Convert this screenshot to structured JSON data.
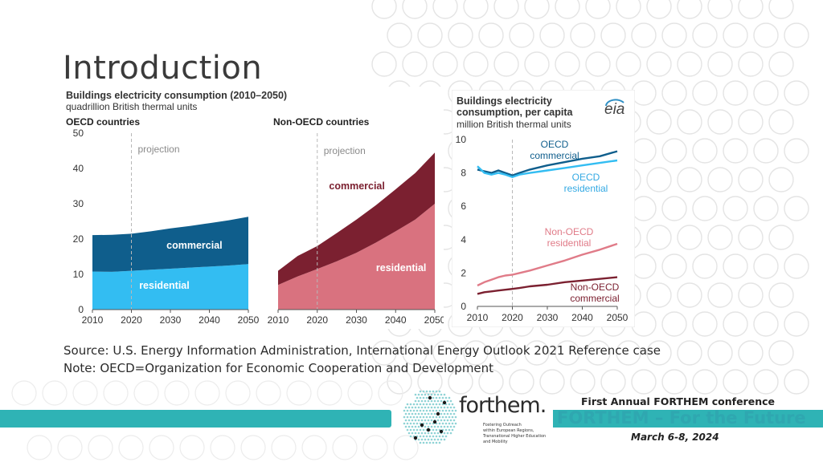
{
  "slide": {
    "title": "Introduction",
    "source_line": "Source: U.S. Energy Information Administration, International Energy Outlook 2021 Reference case",
    "note_line": "Note: OECD=Organization for Economic Cooperation and Development"
  },
  "footer": {
    "logo_text": "forthem.",
    "logo_tagline": [
      "Fostering Outreach",
      "within European Regions,",
      "Transnational Higher Education",
      "and Mobility"
    ],
    "conference_title": "First Annual FORTHEM conference",
    "conference_name": "FORTHEM – For the Future",
    "conference_date": "March 6-8, 2024",
    "colors": {
      "accent": "#2fb3b5",
      "accent_text": "#2fa7b0"
    }
  },
  "chart_data": [
    {
      "type": "area",
      "title": "Buildings electricity consumption (2010–2050)",
      "subtitle": "quadrillion British thermal units",
      "panel": "OECD countries",
      "projection_label": "projection",
      "projection_x": 2020,
      "x": [
        2010,
        2015,
        2020,
        2025,
        2030,
        2035,
        2040,
        2045,
        2050
      ],
      "series": [
        {
          "name": "residential",
          "values": [
            10.8,
            10.7,
            11.0,
            11.3,
            11.6,
            11.9,
            12.2,
            12.5,
            12.9
          ],
          "color": "#33bdf2"
        },
        {
          "name": "commercial",
          "values": [
            10.3,
            10.5,
            10.5,
            10.9,
            11.4,
            11.8,
            12.3,
            12.8,
            13.4
          ],
          "color": "#0f5e8c"
        }
      ],
      "xlabel": "",
      "ylabel": "",
      "xticks": [
        2010,
        2020,
        2030,
        2040,
        2050
      ],
      "yticks": [
        0,
        10,
        20,
        30,
        40,
        50
      ],
      "ylim": [
        0,
        50
      ]
    },
    {
      "type": "area",
      "title": "",
      "panel": "Non-OECD countries",
      "projection_label": "projection",
      "projection_x": 2020,
      "x": [
        2010,
        2015,
        2020,
        2025,
        2030,
        2035,
        2040,
        2045,
        2050
      ],
      "series": [
        {
          "name": "residential",
          "values": [
            7.0,
            9.4,
            11.5,
            13.7,
            16.1,
            19.0,
            22.2,
            25.5,
            30.0
          ],
          "color": "#d9727f"
        },
        {
          "name": "commercial",
          "values": [
            4.0,
            5.8,
            6.5,
            8.0,
            9.4,
            10.6,
            11.9,
            13.2,
            14.5
          ],
          "color": "#7b2030"
        }
      ],
      "xticks": [
        2010,
        2020,
        2030,
        2040,
        2050
      ],
      "ylim": [
        0,
        50
      ]
    },
    {
      "type": "line",
      "title": "Buildings electricity consumption, per capita",
      "subtitle": "million British thermal units",
      "logo_text": "eia",
      "projection_x": 2020,
      "x": [
        2010,
        2012,
        2014,
        2016,
        2018,
        2020,
        2022,
        2025,
        2030,
        2035,
        2040,
        2045,
        2050
      ],
      "series": [
        {
          "name": "OECD commercial",
          "values": [
            8.2,
            8.1,
            8.0,
            8.15,
            8.0,
            7.85,
            8.0,
            8.2,
            8.45,
            8.65,
            8.85,
            9.0,
            9.3
          ],
          "color": "#0f5e8c"
        },
        {
          "name": "OECD residential",
          "values": [
            8.4,
            8.0,
            7.9,
            8.0,
            7.9,
            7.75,
            7.9,
            8.0,
            8.15,
            8.3,
            8.45,
            8.6,
            8.75
          ],
          "color": "#33bdf2"
        },
        {
          "name": "Non-OECD residential",
          "values": [
            1.25,
            1.45,
            1.6,
            1.75,
            1.85,
            1.9,
            2.0,
            2.15,
            2.45,
            2.75,
            3.1,
            3.4,
            3.75
          ],
          "color": "#e07b88"
        },
        {
          "name": "Non-OECD commercial",
          "values": [
            0.75,
            0.85,
            0.9,
            0.95,
            1.0,
            1.05,
            1.1,
            1.2,
            1.3,
            1.45,
            1.55,
            1.65,
            1.75
          ],
          "color": "#7b2030"
        }
      ],
      "xticks": [
        2010,
        2020,
        2030,
        2040,
        2050
      ],
      "yticks": [
        0,
        2,
        4,
        6,
        8,
        10
      ],
      "ylim": [
        0,
        10
      ]
    }
  ]
}
